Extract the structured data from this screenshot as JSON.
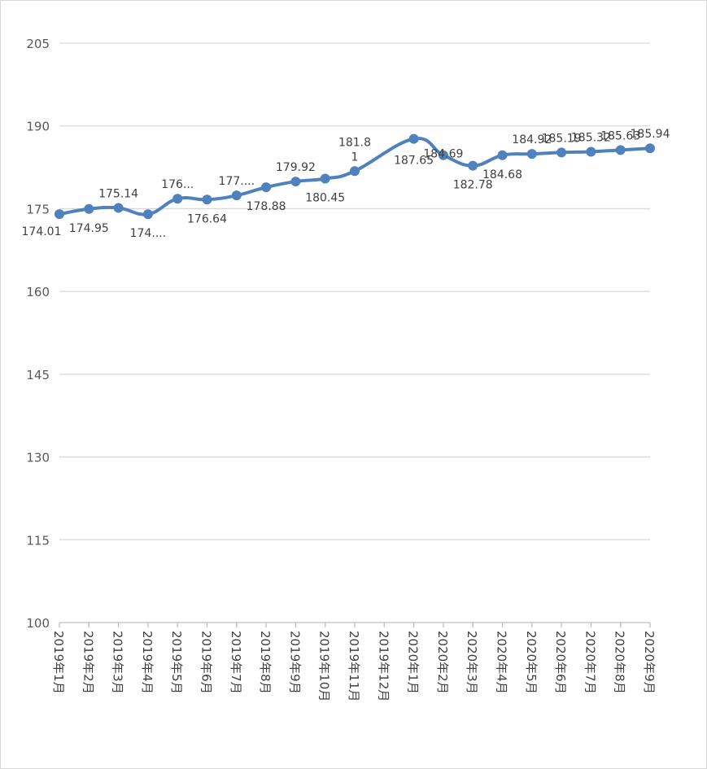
{
  "chart_data": {
    "type": "line",
    "title": "",
    "xlabel": "",
    "ylabel": "",
    "ylim": [
      100,
      205
    ],
    "yticks": [
      100,
      115,
      130,
      145,
      160,
      175,
      190,
      205
    ],
    "grid": true,
    "legend": "none",
    "categories": [
      "2019年1月",
      "2019年2月",
      "2019年3月",
      "2019年4月",
      "2019年5月",
      "2019年6月",
      "2019年7月",
      "2019年8月",
      "2019年9月",
      "2019年10月",
      "2019年11月",
      "2019年12月",
      "2020年1月",
      "2020年2月",
      "2020年3月",
      "2020年4月",
      "2020年5月",
      "2020年6月",
      "2020年7月",
      "2020年8月",
      "2020年9月"
    ],
    "series": [
      {
        "color": "#4f81bd",
        "values": [
          174.01,
          174.95,
          175.14,
          174.0,
          176.8,
          176.64,
          177.4,
          178.88,
          179.92,
          180.45,
          181.81,
          null,
          187.65,
          184.69,
          182.78,
          184.68,
          184.92,
          185.19,
          185.32,
          185.63,
          185.94
        ],
        "data_labels": [
          "174.01",
          "174.95",
          "175.14",
          "174....",
          "176...",
          "176.64",
          "177....",
          "178.88",
          "179.92",
          "180.45",
          "181.8\n1",
          "",
          "187.65",
          "184.69",
          "182.78",
          "184.68",
          "184.92",
          "185.19",
          "185.32",
          "185.63",
          "185.94"
        ]
      }
    ]
  }
}
